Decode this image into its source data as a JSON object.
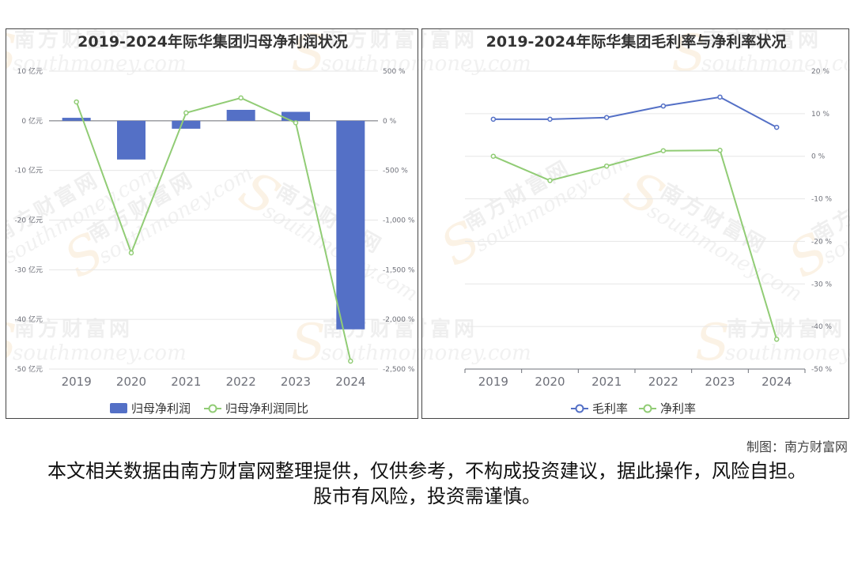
{
  "credit": "制图：南方财富网",
  "disclaimer": "本文相关数据由南方财富网整理提供，仅供参考，不构成投资建议，据此操作，风险自担。股市有风险，投资需谨慎。",
  "watermark": {
    "cn": "南方财富网",
    "en": "southmoney.com"
  },
  "colors": {
    "bar": "#5470c6",
    "green": "#91cc75",
    "blue": "#5470c6",
    "axis": "#6e7079",
    "grid": "#e6e6e6"
  },
  "chart_data": [
    {
      "type": "bar+line",
      "title": "2019-2024年际华集团归母净利润状况",
      "categories": [
        "2019",
        "2020",
        "2021",
        "2022",
        "2023",
        "2024"
      ],
      "left_axis": {
        "ticks": [
          10,
          0,
          -10,
          -20,
          -30,
          -40,
          -50
        ],
        "tick_labels": [
          "10 亿元",
          "0 亿元",
          "-10 亿元",
          "-20 亿元",
          "-30 亿元",
          "-40 亿元",
          "-50 亿元"
        ],
        "range": [
          -50,
          10
        ]
      },
      "right_axis": {
        "ticks": [
          500,
          0,
          -500,
          -1000,
          -1500,
          -2000,
          -2500
        ],
        "tick_labels": [
          "500 %",
          "0 %",
          "-500 %",
          "-1,000 %",
          "-1,500 %",
          "-2,000 %",
          "-2,500 %"
        ],
        "range": [
          -2500,
          500
        ]
      },
      "series": [
        {
          "name": "归母净利润",
          "kind": "bar",
          "axis": "left",
          "values": [
            0.6,
            -7.8,
            -1.6,
            2.2,
            1.8,
            -42.0
          ]
        },
        {
          "name": "归母净利润同比",
          "kind": "line",
          "axis": "right",
          "values": [
            190,
            -1330,
            80,
            230,
            -20,
            -2420
          ]
        }
      ],
      "legend": [
        "归母净利润",
        "归母净利润同比"
      ],
      "legend_position": "bottom"
    },
    {
      "type": "line",
      "title": "2019-2024年际华集团毛利率与净利率状况",
      "categories": [
        "2019",
        "2020",
        "2021",
        "2022",
        "2023",
        "2024"
      ],
      "right_axis": {
        "ticks": [
          20,
          10,
          0,
          -10,
          -20,
          -30,
          -40,
          -50
        ],
        "tick_labels": [
          "20 %",
          "10 %",
          "0 %",
          "-10 %",
          "-20 %",
          "-30 %",
          "-40 %",
          "-50 %"
        ],
        "range": [
          -50,
          20
        ]
      },
      "series": [
        {
          "name": "毛利率",
          "values": [
            8.7,
            8.7,
            9.1,
            11.8,
            13.9,
            6.8
          ]
        },
        {
          "name": "净利率",
          "values": [
            0.0,
            -5.7,
            -2.3,
            1.3,
            1.4,
            -43.0
          ]
        }
      ],
      "legend": [
        "毛利率",
        "净利率"
      ],
      "legend_position": "bottom"
    }
  ]
}
